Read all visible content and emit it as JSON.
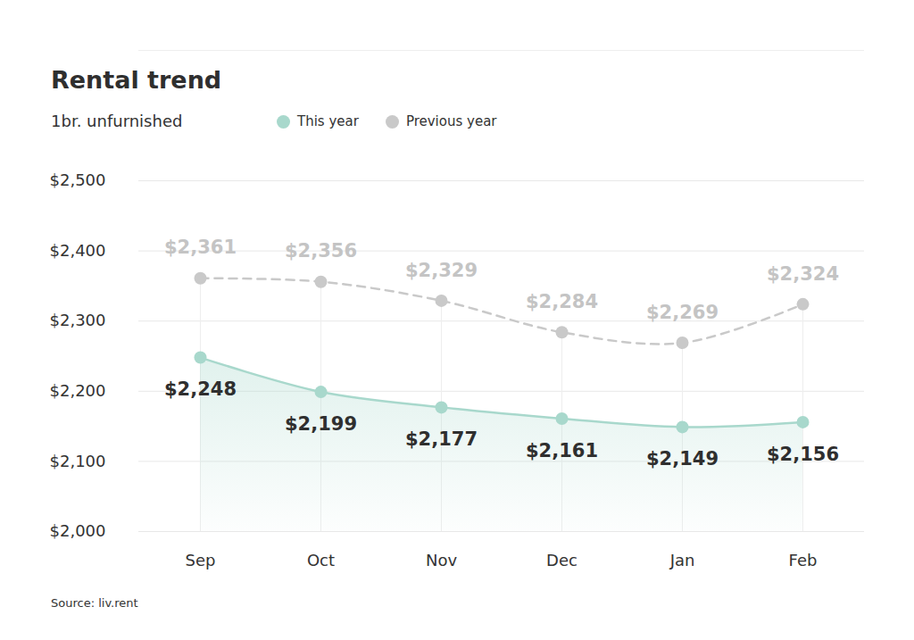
{
  "chart_data": {
    "type": "line",
    "title": "Rental trend",
    "subtitle": "1br. unfurnished",
    "source": "Source: liv.rent",
    "categories": [
      "Sep",
      "Oct",
      "Nov",
      "Dec",
      "Jan",
      "Feb"
    ],
    "series": [
      {
        "name": "This year",
        "type": "area",
        "color": "#a8d8cc",
        "line_style": "solid",
        "marker": "circle",
        "values": [
          2248,
          2199,
          2177,
          2161,
          2149,
          2156
        ],
        "value_labels": [
          "$2,248",
          "$2,199",
          "$2,177",
          "$2,161",
          "$2,149",
          "$2,156"
        ]
      },
      {
        "name": "Previous year",
        "type": "line",
        "color": "#c9c9c9",
        "line_style": "dashed",
        "marker": "circle",
        "values": [
          2361,
          2356,
          2329,
          2284,
          2269,
          2324
        ],
        "value_labels": [
          "$2,361",
          "$2,356",
          "$2,329",
          "$2,284",
          "$2,269",
          "$2,324"
        ]
      }
    ],
    "ylim": [
      2000,
      2500
    ],
    "yticks": [
      {
        "value": 2000,
        "label": "$2,000"
      },
      {
        "value": 2100,
        "label": "$2,100"
      },
      {
        "value": 2200,
        "label": "$2,200"
      },
      {
        "value": 2300,
        "label": "$2,300"
      },
      {
        "value": 2400,
        "label": "$2,400"
      },
      {
        "value": 2500,
        "label": "$2,500"
      }
    ],
    "grid": true,
    "data_labels": true,
    "legend": "top"
  }
}
